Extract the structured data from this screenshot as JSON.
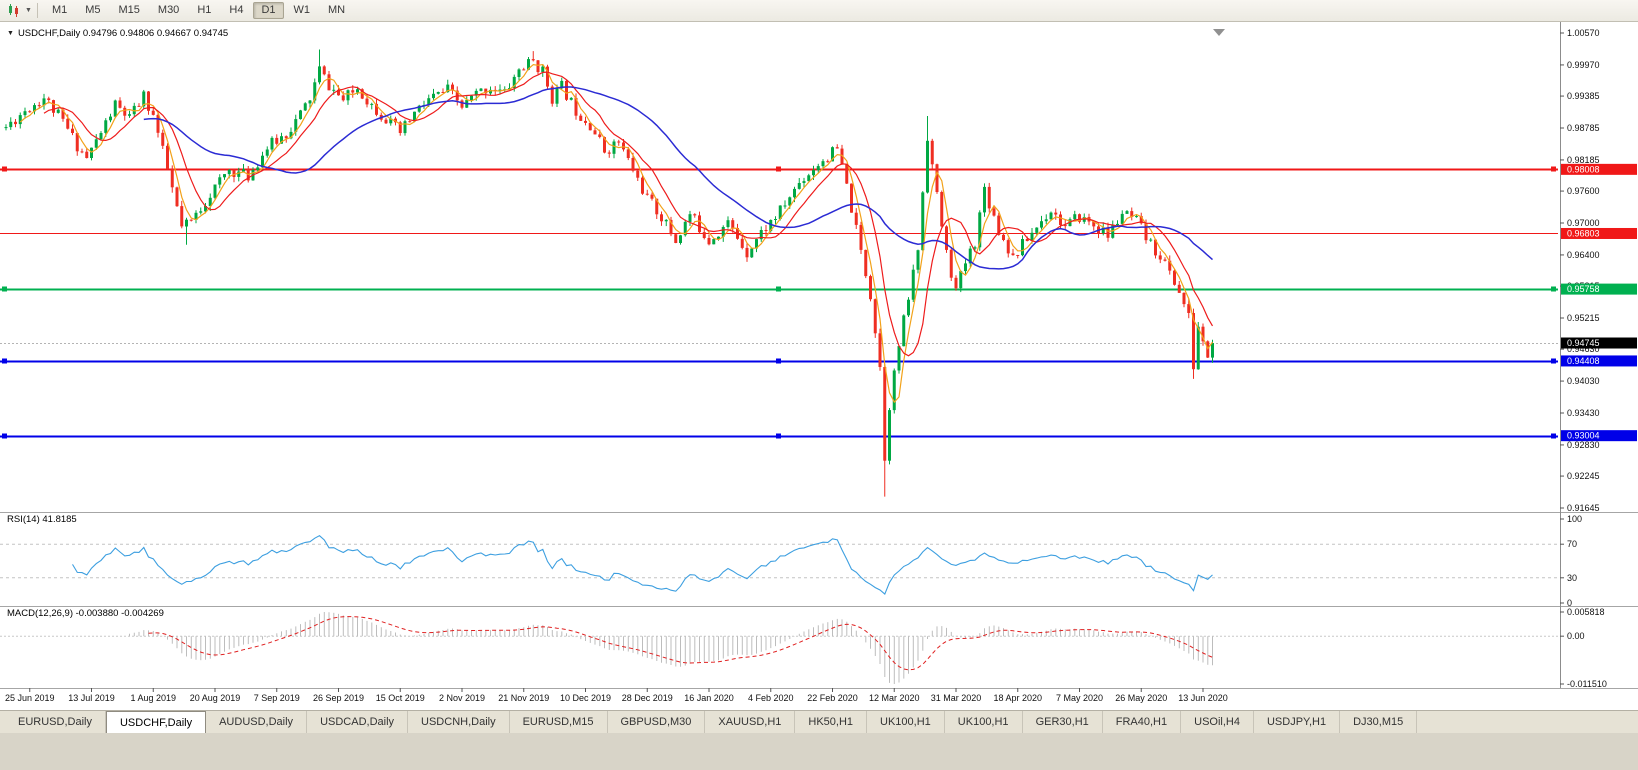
{
  "toolbar": {
    "chart_type_icon": "candlestick-chart-icon",
    "dropdown_icon": "caret-down-icon",
    "timeframes": [
      {
        "label": "M1",
        "active": false
      },
      {
        "label": "M5",
        "active": false
      },
      {
        "label": "M15",
        "active": false
      },
      {
        "label": "M30",
        "active": false
      },
      {
        "label": "H1",
        "active": false
      },
      {
        "label": "H4",
        "active": false
      },
      {
        "label": "D1",
        "active": true
      },
      {
        "label": "W1",
        "active": false
      },
      {
        "label": "MN",
        "active": false
      }
    ]
  },
  "chart": {
    "symbol_label": "USDCHF,Daily",
    "ohlc": {
      "open": "0.94796",
      "high": "0.94806",
      "low": "0.94667",
      "close": "0.94745"
    },
    "current_price": "0.94745",
    "up_color": "#00a843",
    "down_color": "#ef2e22",
    "bid_line_color": "#b4b4b4",
    "price_axis_ticks": [
      "1.00570",
      "0.99970",
      "0.99385",
      "0.98785",
      "0.98185",
      "0.97600",
      "0.97000",
      "0.96400",
      "0.95815",
      "0.95215",
      "0.94630",
      "0.94030",
      "0.93430",
      "0.92830",
      "0.92245",
      "0.91645"
    ],
    "hlines": [
      {
        "price": 0.98008,
        "label": "0.98008",
        "color": "#f01818",
        "width": 2,
        "handles": true
      },
      {
        "price": 0.96803,
        "label": "0.96803",
        "color": "#f01818",
        "width": 1,
        "handles": false
      },
      {
        "price": 0.95758,
        "label": "0.95758",
        "color": "#00b050",
        "width": 2,
        "handles": true
      },
      {
        "price": 0.94408,
        "label": "0.94408",
        "color": "#0000e8",
        "width": 2,
        "handles": true
      },
      {
        "price": 0.93004,
        "label": "0.93004",
        "color": "#0000e8",
        "width": 2,
        "handles": true
      }
    ],
    "date_labels": [
      "25 Jun 2019",
      "13 Jul 2019",
      "1 Aug 2019",
      "20 Aug 2019",
      "7 Sep 2019",
      "26 Sep 2019",
      "15 Oct 2019",
      "2 Nov 2019",
      "21 Nov 2019",
      "10 Dec 2019",
      "28 Dec 2019",
      "16 Jan 2020",
      "4 Feb 2020",
      "22 Feb 2020",
      "12 Mar 2020",
      "31 Mar 2020",
      "18 Apr 2020",
      "7 May 2020",
      "26 May 2020",
      "13 Jun 2020"
    ]
  },
  "rsi": {
    "name": "RSI(14)",
    "value": "41.8185",
    "line_color": "#3d9fe0",
    "axis_labels": [
      "100",
      "70",
      "30",
      "0"
    ],
    "levels": [
      70,
      30
    ]
  },
  "macd": {
    "name": "MACD(12,26,9)",
    "values": "-0.003880 -0.004269",
    "histogram_color": "#bdbdbd",
    "signal_color": "#e02020",
    "axis_labels": [
      "0.005818",
      "0.00",
      "-0.011510"
    ]
  },
  "tabs": [
    {
      "label": "EURUSD,Daily",
      "active": false
    },
    {
      "label": "USDCHF,Daily",
      "active": true
    },
    {
      "label": "AUDUSD,Daily",
      "active": false
    },
    {
      "label": "USDCAD,Daily",
      "active": false
    },
    {
      "label": "USDCNH,Daily",
      "active": false
    },
    {
      "label": "EURUSD,M15",
      "active": false
    },
    {
      "label": "GBPUSD,M30",
      "active": false
    },
    {
      "label": "XAUUSD,H1",
      "active": false
    },
    {
      "label": "HK50,H1",
      "active": false
    },
    {
      "label": "UK100,H1",
      "active": false
    },
    {
      "label": "UK100,H1",
      "active": false
    },
    {
      "label": "GER30,H1",
      "active": false
    },
    {
      "label": "FRA40,H1",
      "active": false
    },
    {
      "label": "USOil,H4",
      "active": false
    },
    {
      "label": "USDJPY,H1",
      "active": false
    },
    {
      "label": "DJ30,M15",
      "active": false
    }
  ],
  "chart_data": {
    "type": "candlestick",
    "symbol": "USDCHF",
    "timeframe": "Daily",
    "count": 255,
    "seed": 11,
    "noise": 0.0024,
    "wick": 0.001,
    "last_close": 0.94745,
    "price_axis": {
      "top_tick": 1.0057,
      "bottom_tick": 0.91645
    },
    "horizontal_levels": [
      0.98008,
      0.96803,
      0.95758,
      0.94408,
      0.93004
    ],
    "current": {
      "open": 0.94796,
      "high": 0.94806,
      "low": 0.94667,
      "close": 0.94745
    },
    "indicators": {
      "rsi_period": 14,
      "rsi_current": 41.8185,
      "macd_params": [
        12,
        26,
        9
      ],
      "macd_current": -0.00388,
      "macd_signal_current": -0.004269,
      "macd_scale_max": 0.005818,
      "macd_scale_min": -0.01151
    },
    "moving_averages": [
      {
        "period": 4,
        "color": "#f2a21a",
        "width": 1.2
      },
      {
        "period": 9,
        "color": "#ee1c1c",
        "width": 1.2
      },
      {
        "period": 30,
        "color": "#2b2bd4",
        "width": 1.5
      }
    ],
    "anchors": [
      [
        0,
        0.988
      ],
      [
        4,
        0.9912
      ],
      [
        8,
        0.9936
      ],
      [
        12,
        0.989
      ],
      [
        15,
        0.9846
      ],
      [
        17,
        0.9822
      ],
      [
        20,
        0.987
      ],
      [
        23,
        0.9922
      ],
      [
        26,
        0.9896
      ],
      [
        29,
        0.9938
      ],
      [
        31,
        0.9902
      ],
      [
        34,
        0.98
      ],
      [
        37,
        0.969
      ],
      [
        39,
        0.9702
      ],
      [
        43,
        0.9755
      ],
      [
        47,
        0.98
      ],
      [
        51,
        0.9788
      ],
      [
        55,
        0.9842
      ],
      [
        59,
        0.9868
      ],
      [
        62,
        0.9904
      ],
      [
        64,
        0.9934
      ],
      [
        66,
        0.9988
      ],
      [
        68,
        0.9958
      ],
      [
        71,
        0.993
      ],
      [
        74,
        0.9954
      ],
      [
        77,
        0.9922
      ],
      [
        80,
        0.9896
      ],
      [
        83,
        0.9868
      ],
      [
        86,
        0.9906
      ],
      [
        89,
        0.9932
      ],
      [
        93,
        0.995
      ],
      [
        96,
        0.9918
      ],
      [
        99,
        0.9942
      ],
      [
        102,
        0.9956
      ],
      [
        105,
        0.9944
      ],
      [
        108,
        0.9988
      ],
      [
        111,
        1.0004
      ],
      [
        113,
        0.9984
      ],
      [
        115,
        0.9936
      ],
      [
        117,
        0.9956
      ],
      [
        120,
        0.9912
      ],
      [
        123,
        0.9886
      ],
      [
        126,
        0.9836
      ],
      [
        129,
        0.9852
      ],
      [
        132,
        0.98
      ],
      [
        135,
        0.9746
      ],
      [
        138,
        0.9712
      ],
      [
        141,
        0.9666
      ],
      [
        144,
        0.9716
      ],
      [
        148,
        0.9668
      ],
      [
        152,
        0.97
      ],
      [
        156,
        0.9646
      ],
      [
        159,
        0.9682
      ],
      [
        163,
        0.9722
      ],
      [
        167,
        0.9776
      ],
      [
        171,
        0.9812
      ],
      [
        175,
        0.9838
      ],
      [
        177,
        0.9768
      ],
      [
        179,
        0.9686
      ],
      [
        180,
        0.9646
      ],
      [
        182,
        0.9566
      ],
      [
        184,
        0.943
      ],
      [
        185,
        0.9262
      ],
      [
        186,
        0.936
      ],
      [
        188,
        0.947
      ],
      [
        190,
        0.956
      ],
      [
        192,
        0.9652
      ],
      [
        194,
        0.9866
      ],
      [
        196,
        0.975
      ],
      [
        198,
        0.9642
      ],
      [
        200,
        0.9572
      ],
      [
        202,
        0.9626
      ],
      [
        204,
        0.9666
      ],
      [
        206,
        0.9766
      ],
      [
        209,
        0.9686
      ],
      [
        212,
        0.9636
      ],
      [
        216,
        0.9682
      ],
      [
        220,
        0.9726
      ],
      [
        223,
        0.9692
      ],
      [
        226,
        0.9712
      ],
      [
        229,
        0.9696
      ],
      [
        232,
        0.9676
      ],
      [
        235,
        0.9718
      ],
      [
        238,
        0.9702
      ],
      [
        241,
        0.9658
      ],
      [
        243,
        0.964
      ],
      [
        245,
        0.9606
      ],
      [
        247,
        0.9572
      ],
      [
        249,
        0.9522
      ],
      [
        250,
        0.943
      ],
      [
        251,
        0.9506
      ],
      [
        252,
        0.9472
      ],
      [
        253,
        0.9452
      ],
      [
        254,
        0.94745
      ]
    ],
    "overrides": {
      "38": {
        "low": 0.9659
      },
      "66": {
        "high": 1.0026
      },
      "111": {
        "high": 1.0023
      },
      "175": {
        "high": 0.9848
      },
      "185": {
        "low": 0.9186
      },
      "194": {
        "high": 0.9901
      },
      "250": {
        "low": 0.9407
      }
    }
  }
}
